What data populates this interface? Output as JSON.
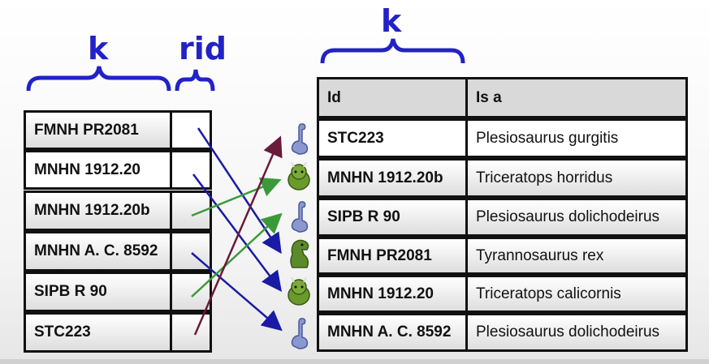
{
  "left_table": {
    "key_label": "k",
    "rid_label": "rid",
    "rows": [
      "FMNH PR2081",
      "MNHN 1912.20",
      "MNHN 1912.20b",
      "MNHN A. C. 8592",
      "SIPB R 90",
      "STC223"
    ]
  },
  "right_table": {
    "key_label": "k",
    "headers": {
      "id": "Id",
      "isa": "Is a"
    },
    "rows": [
      {
        "id": "STC223",
        "isa": "Plesiosaurus gurgitis",
        "icon": "plesiosaur-icon"
      },
      {
        "id": "MNHN 1912.20b",
        "isa": "Triceratops horridus",
        "icon": "triceratops-icon"
      },
      {
        "id": "SIPB R 90",
        "isa": "Plesiosaurus dolichodeirus",
        "icon": "plesiosaur-icon"
      },
      {
        "id": "FMNH PR2081",
        "isa": "Tyrannosaurus rex",
        "icon": "trex-icon"
      },
      {
        "id": "MNHN 1912.20",
        "isa": "Triceratops calicornis",
        "icon": "triceratops-icon"
      },
      {
        "id": "MNHN A. C. 8592",
        "isa": "Plesiosaurus dolichodeirus",
        "icon": "plesiosaur-icon"
      }
    ]
  },
  "colors": {
    "brace": "#2222c8",
    "arrow_blue": "#1a1aa6",
    "arrow_green": "#3a9a3a",
    "arrow_maroon": "#6a1a3a"
  }
}
